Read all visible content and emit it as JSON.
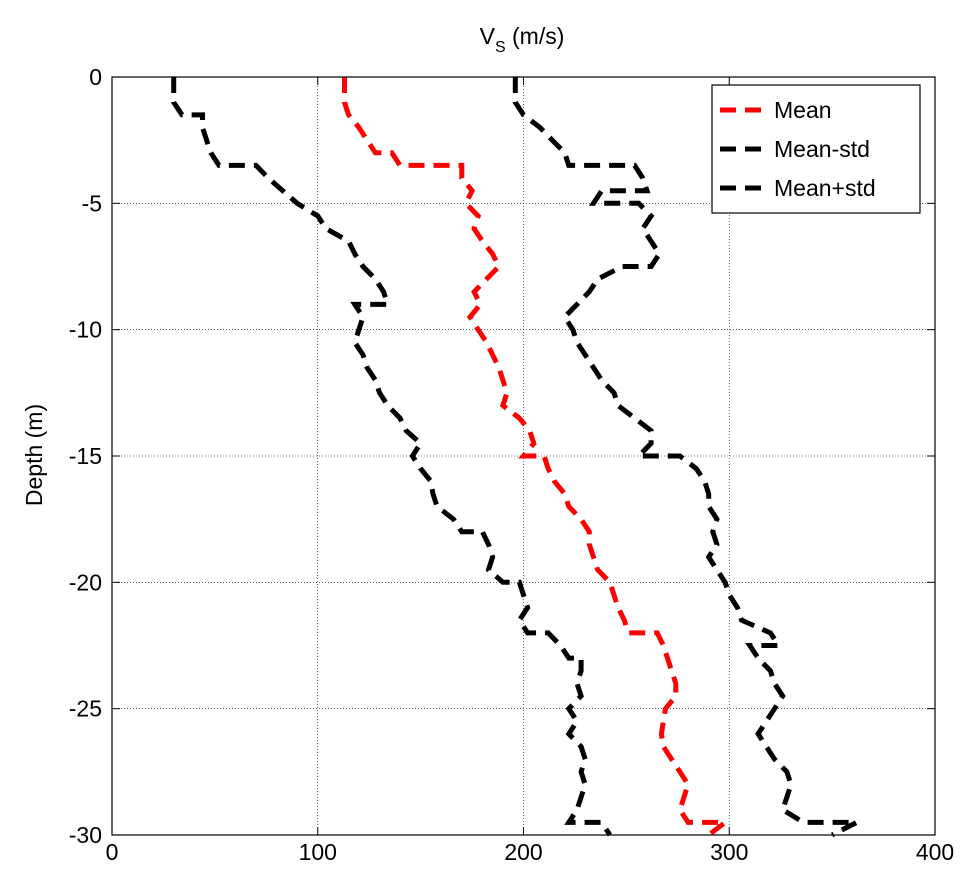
{
  "chart_data": {
    "type": "line",
    "title": "",
    "xlabel_main": "V",
    "xlabel_sub": "S",
    "xlabel_unit": " (m/s)",
    "ylabel": "Depth (m)",
    "xlim": [
      0,
      400
    ],
    "ylim": [
      -30,
      0
    ],
    "xticks": [
      0,
      100,
      200,
      300,
      400
    ],
    "yticks": [
      0,
      -5,
      -10,
      -15,
      -20,
      -25,
      -30
    ],
    "grid": true,
    "xaxis_position": "top",
    "legend_position": "top-right",
    "series": [
      {
        "name": "Mean",
        "color": "#ff0000",
        "dash": "dashed",
        "points": [
          [
            113,
            0
          ],
          [
            113,
            -1
          ],
          [
            115,
            -1.5
          ],
          [
            120,
            -2
          ],
          [
            124,
            -2.5
          ],
          [
            128,
            -3
          ],
          [
            136,
            -3
          ],
          [
            140,
            -3.5
          ],
          [
            170,
            -3.5
          ],
          [
            170,
            -4
          ],
          [
            175,
            -4.5
          ],
          [
            172,
            -5
          ],
          [
            178,
            -5.5
          ],
          [
            176,
            -6
          ],
          [
            180,
            -6.5
          ],
          [
            185,
            -7
          ],
          [
            188,
            -7.5
          ],
          [
            182,
            -8
          ],
          [
            176,
            -8.5
          ],
          [
            179,
            -9
          ],
          [
            174,
            -9.5
          ],
          [
            178,
            -10
          ],
          [
            182,
            -10.5
          ],
          [
            185,
            -11
          ],
          [
            188,
            -11.5
          ],
          [
            190,
            -12
          ],
          [
            192,
            -12.5
          ],
          [
            190,
            -13
          ],
          [
            198,
            -13.5
          ],
          [
            203,
            -14
          ],
          [
            205,
            -14.5
          ],
          [
            200,
            -15
          ],
          [
            210,
            -15
          ],
          [
            212,
            -15.5
          ],
          [
            215,
            -16
          ],
          [
            220,
            -16.5
          ],
          [
            222,
            -17
          ],
          [
            228,
            -17.5
          ],
          [
            232,
            -18
          ],
          [
            232,
            -18.5
          ],
          [
            234,
            -19
          ],
          [
            236,
            -19.5
          ],
          [
            242,
            -20
          ],
          [
            244,
            -20.5
          ],
          [
            246,
            -21
          ],
          [
            249,
            -21.5
          ],
          [
            251,
            -22
          ],
          [
            265,
            -22
          ],
          [
            268,
            -22.5
          ],
          [
            270,
            -23
          ],
          [
            272,
            -23.5
          ],
          [
            274,
            -24
          ],
          [
            274,
            -24.5
          ],
          [
            269,
            -25
          ],
          [
            268,
            -25.5
          ],
          [
            267,
            -26
          ],
          [
            268,
            -26.5
          ],
          [
            272,
            -27
          ],
          [
            276,
            -27.5
          ],
          [
            280,
            -28
          ],
          [
            278,
            -28.5
          ],
          [
            276,
            -29
          ],
          [
            280,
            -29.5
          ],
          [
            298,
            -29.5
          ],
          [
            290,
            -30
          ]
        ]
      },
      {
        "name": "Mean-std",
        "color": "#000000",
        "dash": "dashed",
        "points": [
          [
            30,
            0
          ],
          [
            30,
            -1
          ],
          [
            34,
            -1.5
          ],
          [
            44,
            -1.5
          ],
          [
            44,
            -2
          ],
          [
            46,
            -2.5
          ],
          [
            48,
            -3
          ],
          [
            52,
            -3.5
          ],
          [
            70,
            -3.5
          ],
          [
            76,
            -4
          ],
          [
            83,
            -4.5
          ],
          [
            90,
            -5
          ],
          [
            100,
            -5.5
          ],
          [
            104,
            -6
          ],
          [
            115,
            -6.5
          ],
          [
            118,
            -7
          ],
          [
            122,
            -7.5
          ],
          [
            128,
            -8
          ],
          [
            132,
            -8.5
          ],
          [
            134,
            -9
          ],
          [
            118,
            -9
          ],
          [
            122,
            -9.5
          ],
          [
            120,
            -10
          ],
          [
            118,
            -10.5
          ],
          [
            122,
            -11
          ],
          [
            124,
            -11.5
          ],
          [
            128,
            -12
          ],
          [
            130,
            -12.5
          ],
          [
            134,
            -13
          ],
          [
            140,
            -13.5
          ],
          [
            143,
            -14
          ],
          [
            150,
            -14.5
          ],
          [
            146,
            -15
          ],
          [
            150,
            -15.5
          ],
          [
            155,
            -16
          ],
          [
            156,
            -16.5
          ],
          [
            158,
            -17
          ],
          [
            166,
            -17.5
          ],
          [
            170,
            -18
          ],
          [
            180,
            -18
          ],
          [
            183,
            -18.5
          ],
          [
            185,
            -19
          ],
          [
            183,
            -19.5
          ],
          [
            190,
            -20
          ],
          [
            198,
            -20
          ],
          [
            200,
            -20.5
          ],
          [
            202,
            -21
          ],
          [
            198,
            -21.5
          ],
          [
            202,
            -22
          ],
          [
            212,
            -22
          ],
          [
            218,
            -22.5
          ],
          [
            222,
            -23
          ],
          [
            228,
            -23
          ],
          [
            228,
            -23.5
          ],
          [
            226,
            -24
          ],
          [
            228,
            -24.5
          ],
          [
            222,
            -25
          ],
          [
            226,
            -25.5
          ],
          [
            222,
            -26
          ],
          [
            228,
            -26.5
          ],
          [
            230,
            -27
          ],
          [
            228,
            -27.5
          ],
          [
            230,
            -28
          ],
          [
            228,
            -28.5
          ],
          [
            226,
            -29
          ],
          [
            222,
            -29.5
          ],
          [
            238,
            -29.5
          ],
          [
            242,
            -30
          ]
        ]
      },
      {
        "name": "Mean+std",
        "color": "#000000",
        "dash": "dashed",
        "points": [
          [
            196,
            0
          ],
          [
            196,
            -1
          ],
          [
            200,
            -1.5
          ],
          [
            208,
            -2
          ],
          [
            214,
            -2.5
          ],
          [
            220,
            -3
          ],
          [
            222,
            -3.5
          ],
          [
            244,
            -3.5
          ],
          [
            254,
            -3.5
          ],
          [
            258,
            -4
          ],
          [
            260,
            -4.5
          ],
          [
            238,
            -4.5
          ],
          [
            234,
            -5
          ],
          [
            256,
            -5
          ],
          [
            262,
            -5.5
          ],
          [
            258,
            -6
          ],
          [
            262,
            -6.5
          ],
          [
            266,
            -7
          ],
          [
            262,
            -7.5
          ],
          [
            248,
            -7.5
          ],
          [
            236,
            -8
          ],
          [
            232,
            -8.5
          ],
          [
            226,
            -9
          ],
          [
            220,
            -9.5
          ],
          [
            224,
            -10
          ],
          [
            226,
            -10.5
          ],
          [
            230,
            -11
          ],
          [
            234,
            -11.5
          ],
          [
            238,
            -12
          ],
          [
            244,
            -12.5
          ],
          [
            246,
            -13
          ],
          [
            254,
            -13.5
          ],
          [
            262,
            -14
          ],
          [
            262,
            -14.5
          ],
          [
            256,
            -15
          ],
          [
            276,
            -15
          ],
          [
            284,
            -15.5
          ],
          [
            288,
            -16
          ],
          [
            290,
            -16.5
          ],
          [
            290,
            -17
          ],
          [
            294,
            -17.5
          ],
          [
            292,
            -18
          ],
          [
            294,
            -18.5
          ],
          [
            290,
            -19
          ],
          [
            294,
            -19.5
          ],
          [
            298,
            -20
          ],
          [
            300,
            -20.5
          ],
          [
            304,
            -21
          ],
          [
            306,
            -21.5
          ],
          [
            320,
            -22
          ],
          [
            324,
            -22.5
          ],
          [
            310,
            -22.5
          ],
          [
            314,
            -23
          ],
          [
            320,
            -23.5
          ],
          [
            322,
            -24
          ],
          [
            326,
            -24.5
          ],
          [
            322,
            -25
          ],
          [
            318,
            -25.5
          ],
          [
            314,
            -26
          ],
          [
            318,
            -26.5
          ],
          [
            322,
            -27
          ],
          [
            328,
            -27.5
          ],
          [
            330,
            -28
          ],
          [
            328,
            -28.5
          ],
          [
            326,
            -29
          ],
          [
            336,
            -29.5
          ],
          [
            362,
            -29.5
          ],
          [
            350,
            -30
          ]
        ]
      }
    ]
  }
}
